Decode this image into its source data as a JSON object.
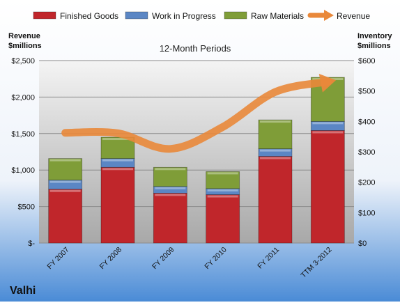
{
  "chart_data": {
    "type": "bar",
    "title": "12-Month Periods",
    "company": "Valhi",
    "left_axis_title": [
      "Revenue",
      "$millions"
    ],
    "right_axis_title": [
      "Inventory",
      "$millions"
    ],
    "categories": [
      "FY 2007",
      "FY 2008",
      "FY 2009",
      "FY 2010",
      "FY 2011",
      "TTM 3-2012"
    ],
    "left_ticks": [
      "$-",
      "$500",
      "$1,000",
      "$1,500",
      "$2,000",
      "$2,500"
    ],
    "right_ticks": [
      "$0",
      "$100",
      "$200",
      "$300",
      "$400",
      "$500",
      "$600"
    ],
    "left_ylim": [
      0,
      2500
    ],
    "right_ylim": [
      0,
      600
    ],
    "stacked": true,
    "grid": true,
    "legend_position": "top",
    "series": [
      {
        "name": "Finished Goods",
        "axis": "right",
        "kind": "bar",
        "color": "#c0262b",
        "values": [
          177,
          249,
          164,
          159,
          285,
          370
        ]
      },
      {
        "name": "Work in Progress",
        "axis": "right",
        "kind": "bar",
        "color": "#5b86c4",
        "values": [
          30,
          29,
          22,
          20,
          25,
          30
        ]
      },
      {
        "name": "Raw Materials",
        "axis": "right",
        "kind": "bar",
        "color": "#7f9d38",
        "values": [
          71,
          70,
          63,
          56,
          95,
          145
        ]
      },
      {
        "name": "Revenue",
        "axis": "left",
        "kind": "line",
        "color": "#e9883a",
        "values": [
          1510,
          1505,
          1290,
          1590,
          2070,
          2210
        ]
      }
    ]
  }
}
